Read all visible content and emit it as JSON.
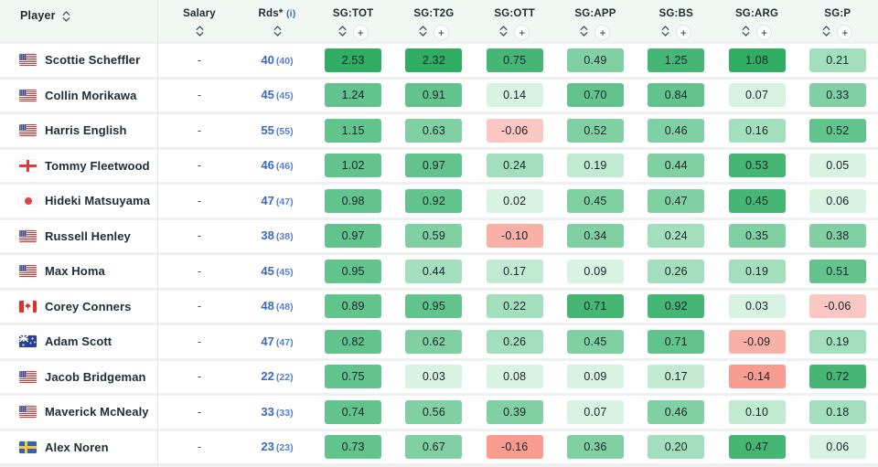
{
  "header": {
    "player": {
      "label": "Player"
    },
    "salary": {
      "label": "Salary"
    },
    "rds": {
      "label": "Rds*",
      "info": "(i)"
    },
    "sg_columns": [
      {
        "label": "SG:TOT"
      },
      {
        "label": "SG:T2G"
      },
      {
        "label": "SG:OTT"
      },
      {
        "label": "SG:APP"
      },
      {
        "label": "SG:BS"
      },
      {
        "label": "SG:ARG"
      },
      {
        "label": "SG:P"
      }
    ]
  },
  "icons": {
    "sort_glyph": "sort-up-down",
    "plus_glyph": "+"
  },
  "colors": {
    "header_bg": "#f1f7f3",
    "row_bg": "#ffffff",
    "row_gap": "#eef0f2",
    "divider": "#e2e6e8",
    "link_blue": "#3a67c8",
    "text_dark": "#1d2b33",
    "palette": {
      "g1": "#2fae63",
      "g2": "#45b674",
      "g3": "#63c38c",
      "g4": "#81d0a3",
      "g5": "#a3dfbd",
      "g6": "#c2ead2",
      "g7": "#d9f3e3",
      "r1": "#fbc7c2",
      "r2": "#f9b0a7",
      "r3": "#f89c90"
    }
  },
  "rows": [
    {
      "player": "Scottie Scheffler",
      "country": "us",
      "salary": "-",
      "rds": "40",
      "rds_paren": "(40)",
      "stats": [
        [
          "2.53",
          "g1"
        ],
        [
          "2.32",
          "g1"
        ],
        [
          "0.75",
          "g2"
        ],
        [
          "0.49",
          "g4"
        ],
        [
          "1.25",
          "g2"
        ],
        [
          "1.08",
          "g1"
        ],
        [
          "0.21",
          "g5"
        ]
      ]
    },
    {
      "player": "Collin Morikawa",
      "country": "us",
      "salary": "-",
      "rds": "45",
      "rds_paren": "(45)",
      "stats": [
        [
          "1.24",
          "g3"
        ],
        [
          "0.91",
          "g3"
        ],
        [
          "0.14",
          "g7"
        ],
        [
          "0.70",
          "g3"
        ],
        [
          "0.84",
          "g3"
        ],
        [
          "0.07",
          "g7"
        ],
        [
          "0.33",
          "g4"
        ]
      ]
    },
    {
      "player": "Harris English",
      "country": "us",
      "salary": "-",
      "rds": "55",
      "rds_paren": "(55)",
      "stats": [
        [
          "1.15",
          "g3"
        ],
        [
          "0.63",
          "g4"
        ],
        [
          "-0.06",
          "r1"
        ],
        [
          "0.52",
          "g4"
        ],
        [
          "0.46",
          "g4"
        ],
        [
          "0.16",
          "g5"
        ],
        [
          "0.52",
          "g3"
        ]
      ]
    },
    {
      "player": "Tommy Fleetwood",
      "country": "en",
      "salary": "-",
      "rds": "46",
      "rds_paren": "(46)",
      "stats": [
        [
          "1.02",
          "g3"
        ],
        [
          "0.97",
          "g3"
        ],
        [
          "0.24",
          "g5"
        ],
        [
          "0.19",
          "g6"
        ],
        [
          "0.44",
          "g4"
        ],
        [
          "0.53",
          "g2"
        ],
        [
          "0.05",
          "g7"
        ]
      ]
    },
    {
      "player": "Hideki Matsuyama",
      "country": "jp",
      "salary": "-",
      "rds": "47",
      "rds_paren": "(47)",
      "stats": [
        [
          "0.98",
          "g3"
        ],
        [
          "0.92",
          "g3"
        ],
        [
          "0.02",
          "g7"
        ],
        [
          "0.45",
          "g4"
        ],
        [
          "0.47",
          "g4"
        ],
        [
          "0.45",
          "g2"
        ],
        [
          "0.06",
          "g7"
        ]
      ]
    },
    {
      "player": "Russell Henley",
      "country": "us",
      "salary": "-",
      "rds": "38",
      "rds_paren": "(38)",
      "stats": [
        [
          "0.97",
          "g3"
        ],
        [
          "0.59",
          "g4"
        ],
        [
          "-0.10",
          "r2"
        ],
        [
          "0.34",
          "g4"
        ],
        [
          "0.24",
          "g5"
        ],
        [
          "0.35",
          "g4"
        ],
        [
          "0.38",
          "g4"
        ]
      ]
    },
    {
      "player": "Max Homa",
      "country": "us",
      "salary": "-",
      "rds": "45",
      "rds_paren": "(45)",
      "stats": [
        [
          "0.95",
          "g3"
        ],
        [
          "0.44",
          "g5"
        ],
        [
          "0.17",
          "g6"
        ],
        [
          "0.09",
          "g7"
        ],
        [
          "0.26",
          "g5"
        ],
        [
          "0.19",
          "g5"
        ],
        [
          "0.51",
          "g3"
        ]
      ]
    },
    {
      "player": "Corey Conners",
      "country": "ca",
      "salary": "-",
      "rds": "48",
      "rds_paren": "(48)",
      "stats": [
        [
          "0.89",
          "g3"
        ],
        [
          "0.95",
          "g3"
        ],
        [
          "0.22",
          "g5"
        ],
        [
          "0.71",
          "g2"
        ],
        [
          "0.92",
          "g2"
        ],
        [
          "0.03",
          "g7"
        ],
        [
          "-0.06",
          "r1"
        ]
      ]
    },
    {
      "player": "Adam Scott",
      "country": "au",
      "salary": "-",
      "rds": "47",
      "rds_paren": "(47)",
      "stats": [
        [
          "0.82",
          "g3"
        ],
        [
          "0.62",
          "g4"
        ],
        [
          "0.26",
          "g5"
        ],
        [
          "0.45",
          "g4"
        ],
        [
          "0.71",
          "g3"
        ],
        [
          "-0.09",
          "r2"
        ],
        [
          "0.19",
          "g5"
        ]
      ]
    },
    {
      "player": "Jacob Bridgeman",
      "country": "us",
      "salary": "-",
      "rds": "22",
      "rds_paren": "(22)",
      "stats": [
        [
          "0.75",
          "g3"
        ],
        [
          "0.03",
          "g7"
        ],
        [
          "0.08",
          "g7"
        ],
        [
          "0.09",
          "g7"
        ],
        [
          "0.17",
          "g6"
        ],
        [
          "-0.14",
          "r3"
        ],
        [
          "0.72",
          "g2"
        ]
      ]
    },
    {
      "player": "Maverick McNealy",
      "country": "us",
      "salary": "-",
      "rds": "33",
      "rds_paren": "(33)",
      "stats": [
        [
          "0.74",
          "g3"
        ],
        [
          "0.56",
          "g4"
        ],
        [
          "0.39",
          "g4"
        ],
        [
          "0.07",
          "g7"
        ],
        [
          "0.46",
          "g4"
        ],
        [
          "0.10",
          "g6"
        ],
        [
          "0.18",
          "g5"
        ]
      ]
    },
    {
      "player": "Alex Noren",
      "country": "se",
      "salary": "-",
      "rds": "23",
      "rds_paren": "(23)",
      "stats": [
        [
          "0.73",
          "g3"
        ],
        [
          "0.67",
          "g4"
        ],
        [
          "-0.16",
          "r3"
        ],
        [
          "0.36",
          "g4"
        ],
        [
          "0.20",
          "g5"
        ],
        [
          "0.47",
          "g2"
        ],
        [
          "0.06",
          "g7"
        ]
      ]
    }
  ]
}
